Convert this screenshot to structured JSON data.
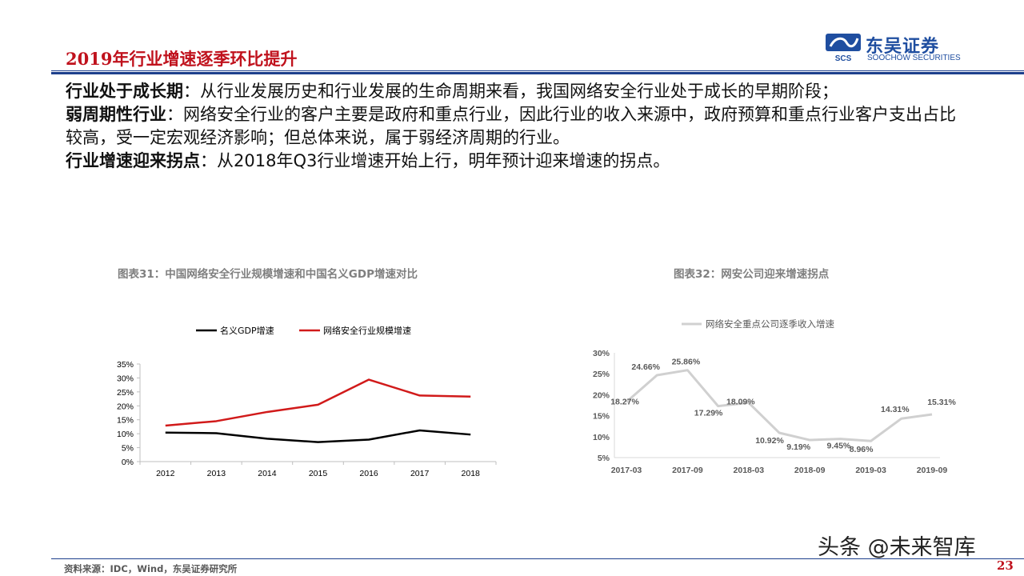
{
  "header": {
    "title": "2019年行业增速逐季环比提升",
    "logo_name": "东吴证券",
    "logo_en": "SOOCHOW SECURITIES",
    "logo_mark": "SCS",
    "colors": {
      "title": "#c0121d",
      "rule": "#1d3f8c",
      "logo": "#1f4ea0"
    }
  },
  "body": {
    "p1_bold": "行业处于成长期",
    "p1_text": "：从行业发展历史和行业发展的生命周期来看，我国网络安全行业处于成长的早期阶段；",
    "p2_bold": "弱周期性行业",
    "p2_text": "：网络安全行业的客户主要是政府和重点行业，因此行业的收入来源中，政府预算和重点行业客户支出占比较高，受一定宏观经济影响；但总体来说，属于弱经济周期的行业。",
    "p3_bold": "行业增速迎来拐点",
    "p3_text": "：从2018年Q3行业增速开始上行，明年预计迎来增速的拐点。"
  },
  "chart_data": [
    {
      "type": "line",
      "title": "图表31：中国网络安全行业规模增速和中国名义GDP增速对比",
      "categories": [
        "2012",
        "2013",
        "2014",
        "2015",
        "2016",
        "2017",
        "2018"
      ],
      "series": [
        {
          "name": "名义GDP增速",
          "color": "#000000",
          "values": [
            10.4,
            10.2,
            8.2,
            7.0,
            7.9,
            11.2,
            9.7
          ]
        },
        {
          "name": "网络安全行业规模增速",
          "color": "#d11a1a",
          "values": [
            12.9,
            14.5,
            17.8,
            20.4,
            29.4,
            23.7,
            23.3
          ]
        }
      ],
      "yticks": [
        "0%",
        "5%",
        "10%",
        "15%",
        "20%",
        "25%",
        "30%",
        "35%"
      ],
      "ylim": [
        0,
        35
      ],
      "legend_position": "top",
      "grid": false
    },
    {
      "type": "line",
      "title": "图表32：网安公司迎来增速拐点",
      "categories": [
        "2017-03",
        "2017-06",
        "2017-09",
        "2017-12",
        "2018-03",
        "2018-06",
        "2018-09",
        "2018-12",
        "2019-03",
        "2019-06",
        "2019-09"
      ],
      "xtick_labels": [
        "2017-03",
        "2017-09",
        "2018-03",
        "2018-09",
        "2019-03",
        "2019-09"
      ],
      "series": [
        {
          "name": "网络安全重点公司逐季收入增速",
          "color": "#d0d0d0",
          "values": [
            18.27,
            24.66,
            25.86,
            17.29,
            18.09,
            10.92,
            9.19,
            9.45,
            8.96,
            14.31,
            15.31
          ]
        }
      ],
      "data_labels": [
        "18.27%",
        "24.66%",
        "25.86%",
        "17.29%",
        "18.09%",
        "10.92%",
        "9.19%",
        "9.45%",
        "8.96%",
        "14.31%",
        "15.31%"
      ],
      "yticks": [
        "5%",
        "10%",
        "15%",
        "20%",
        "25%",
        "30%"
      ],
      "ylim": [
        5,
        30
      ],
      "legend_position": "top",
      "grid": false
    }
  ],
  "watermark": "头条 @未来智库",
  "footer": {
    "source": "资料来源：IDC，Wind，东吴证券研究所",
    "page": "23"
  }
}
